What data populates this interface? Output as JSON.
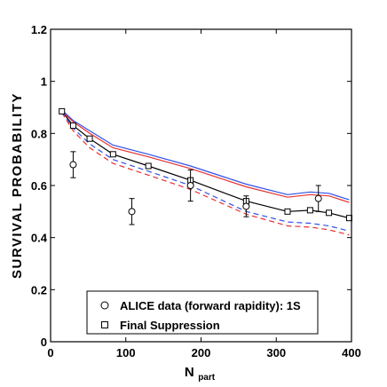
{
  "chart_data": {
    "type": "line",
    "ylabel": "SURVIVAL PROBABILITY",
    "xlabel_main": "N",
    "xlabel_sub": "part",
    "xlim": [
      0,
      400
    ],
    "ylim": [
      0,
      1.2
    ],
    "xticks": [
      "0",
      "100",
      "200",
      "300",
      "400"
    ],
    "yticks": [
      "0",
      "0.2",
      "0.4",
      "0.6",
      "0.8",
      "1",
      "1.2"
    ],
    "xtick_values": [
      0,
      100,
      200,
      300,
      400
    ],
    "ytick_values": [
      0,
      0.2,
      0.4,
      0.6,
      0.8,
      1.0,
      1.2
    ],
    "legend_position": "bottom-left",
    "legend": [
      {
        "label": "ALICE data (forward rapidity): 1S",
        "marker": "circle"
      },
      {
        "label": "Final Suppression",
        "marker": "square"
      }
    ],
    "series": [
      {
        "name": "ALICE data (forward rapidity): 1S",
        "style": "points",
        "marker": "circle",
        "color": "#000000",
        "points": [
          {
            "x": 30,
            "y": 0.68,
            "err": 0.05
          },
          {
            "x": 108,
            "y": 0.5,
            "err": 0.05
          },
          {
            "x": 186,
            "y": 0.6,
            "err": 0.06
          },
          {
            "x": 260,
            "y": 0.52,
            "err": 0.04
          },
          {
            "x": 356,
            "y": 0.55,
            "err": 0.05
          }
        ]
      },
      {
        "name": "Final Suppression",
        "style": "solid",
        "marker": "square",
        "color": "#000000",
        "x": [
          15,
          30,
          52,
          83,
          130,
          186,
          260,
          315,
          345,
          370,
          397
        ],
        "y": [
          0.885,
          0.83,
          0.78,
          0.72,
          0.675,
          0.62,
          0.54,
          0.5,
          0.505,
          0.495,
          0.475
        ]
      },
      {
        "style": "solid",
        "color": "#3050e8",
        "x": [
          15,
          30,
          52,
          83,
          130,
          186,
          260,
          315,
          345,
          370,
          397
        ],
        "y": [
          0.89,
          0.85,
          0.81,
          0.755,
          0.72,
          0.675,
          0.605,
          0.565,
          0.575,
          0.57,
          0.545
        ]
      },
      {
        "style": "solid",
        "color": "#e83030",
        "x": [
          15,
          30,
          52,
          83,
          130,
          186,
          260,
          315,
          345,
          370,
          397
        ],
        "y": [
          0.885,
          0.845,
          0.8,
          0.745,
          0.71,
          0.665,
          0.595,
          0.555,
          0.565,
          0.56,
          0.535
        ]
      },
      {
        "style": "dashed",
        "color": "#3050e8",
        "x": [
          15,
          30,
          52,
          83,
          130,
          186,
          260,
          315,
          345,
          370,
          397
        ],
        "y": [
          0.885,
          0.82,
          0.76,
          0.7,
          0.655,
          0.6,
          0.5,
          0.46,
          0.455,
          0.445,
          0.425
        ]
      },
      {
        "style": "dashed",
        "color": "#e83030",
        "x": [
          15,
          30,
          52,
          83,
          130,
          186,
          260,
          315,
          345,
          370,
          397
        ],
        "y": [
          0.88,
          0.81,
          0.745,
          0.685,
          0.64,
          0.585,
          0.49,
          0.445,
          0.44,
          0.43,
          0.41
        ]
      }
    ]
  }
}
